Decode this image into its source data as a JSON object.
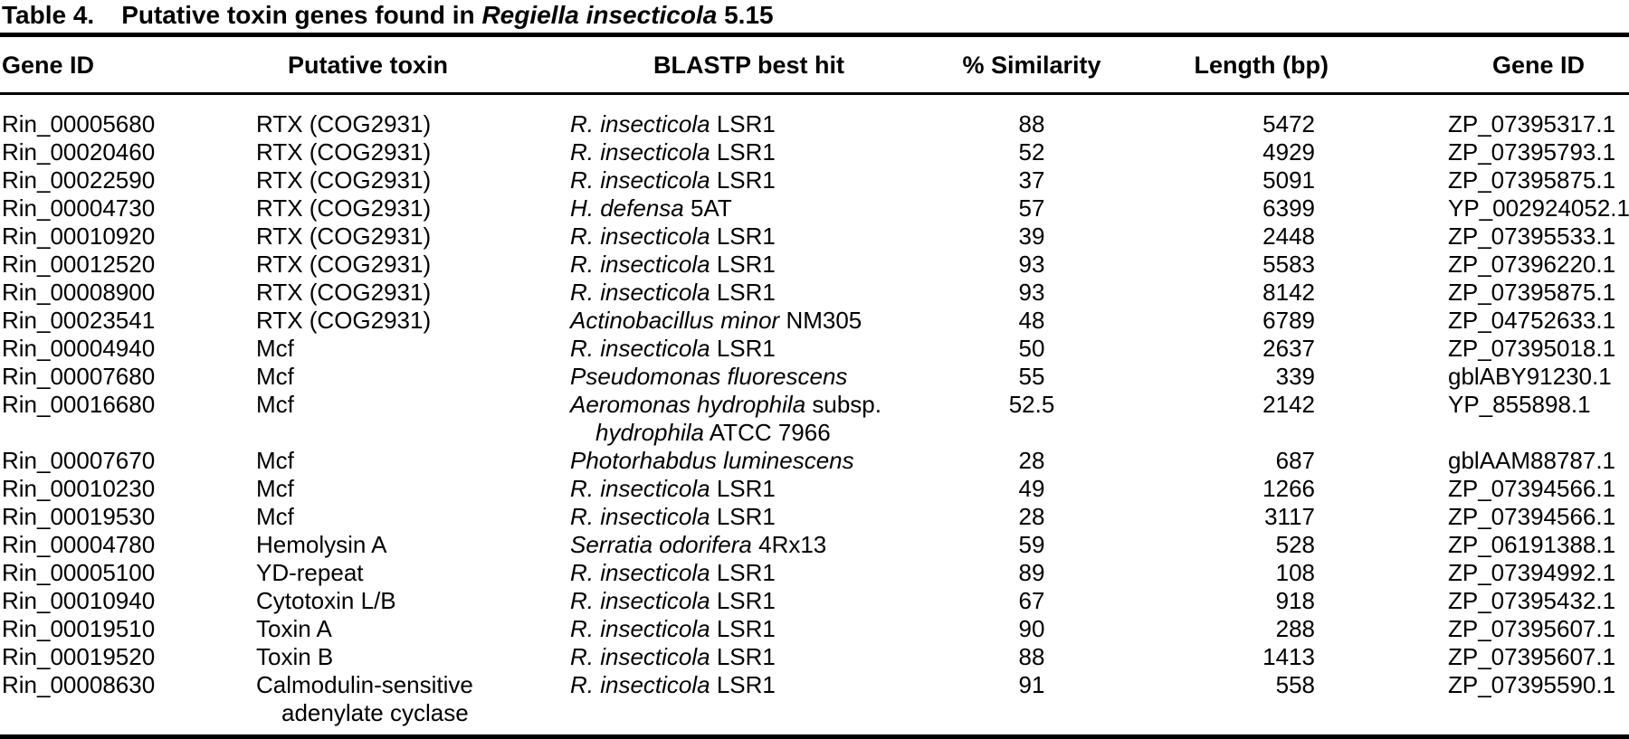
{
  "caption": {
    "label": "Table 4.",
    "text": "Putative toxin genes found in ",
    "species": "Regiella insecticola",
    "suffix": " 5.15"
  },
  "table": {
    "columns": [
      "Gene ID",
      "Putative toxin",
      "BLASTP best hit",
      "% Similarity",
      "Length (bp)",
      "Gene ID"
    ],
    "rows": [
      {
        "gene_id": "Rin_00005680",
        "toxin": [
          "RTX (COG2931)"
        ],
        "blast": [
          [
            {
              "t": "R. insecticola",
              "i": true
            },
            {
              "t": " LSR1"
            }
          ]
        ],
        "similarity": "88",
        "length": "5472",
        "accession": "ZP_07395317.1"
      },
      {
        "gene_id": "Rin_00020460",
        "toxin": [
          "RTX (COG2931)"
        ],
        "blast": [
          [
            {
              "t": "R. insecticola",
              "i": true
            },
            {
              "t": " LSR1"
            }
          ]
        ],
        "similarity": "52",
        "length": "4929",
        "accession": "ZP_07395793.1"
      },
      {
        "gene_id": "Rin_00022590",
        "toxin": [
          "RTX (COG2931)"
        ],
        "blast": [
          [
            {
              "t": "R. insecticola",
              "i": true
            },
            {
              "t": " LSR1"
            }
          ]
        ],
        "similarity": "37",
        "length": "5091",
        "accession": "ZP_07395875.1"
      },
      {
        "gene_id": "Rin_00004730",
        "toxin": [
          "RTX (COG2931)"
        ],
        "blast": [
          [
            {
              "t": "H. defensa",
              "i": true
            },
            {
              "t": " 5AT"
            }
          ]
        ],
        "similarity": "57",
        "length": "6399",
        "accession": "YP_002924052.1"
      },
      {
        "gene_id": "Rin_00010920",
        "toxin": [
          "RTX (COG2931)"
        ],
        "blast": [
          [
            {
              "t": "R. insecticola",
              "i": true
            },
            {
              "t": " LSR1"
            }
          ]
        ],
        "similarity": "39",
        "length": "2448",
        "accession": "ZP_07395533.1"
      },
      {
        "gene_id": "Rin_00012520",
        "toxin": [
          "RTX (COG2931)"
        ],
        "blast": [
          [
            {
              "t": "R. insecticola",
              "i": true
            },
            {
              "t": " LSR1"
            }
          ]
        ],
        "similarity": "93",
        "length": "5583",
        "accession": "ZP_07396220.1"
      },
      {
        "gene_id": "Rin_00008900",
        "toxin": [
          "RTX (COG2931)"
        ],
        "blast": [
          [
            {
              "t": "R. insecticola",
              "i": true
            },
            {
              "t": " LSR1"
            }
          ]
        ],
        "similarity": "93",
        "length": "8142",
        "accession": "ZP_07395875.1"
      },
      {
        "gene_id": "Rin_00023541",
        "toxin": [
          "RTX (COG2931)"
        ],
        "blast": [
          [
            {
              "t": "Actinobacillus minor",
              "i": true
            },
            {
              "t": " NM305"
            }
          ]
        ],
        "similarity": "48",
        "length": "6789",
        "accession": "ZP_04752633.1"
      },
      {
        "gene_id": "Rin_00004940",
        "toxin": [
          "Mcf"
        ],
        "blast": [
          [
            {
              "t": "R. insecticola",
              "i": true
            },
            {
              "t": " LSR1"
            }
          ]
        ],
        "similarity": "50",
        "length": "2637",
        "accession": "ZP_07395018.1"
      },
      {
        "gene_id": "Rin_00007680",
        "toxin": [
          "Mcf"
        ],
        "blast": [
          [
            {
              "t": "Pseudomonas fluorescens",
              "i": true
            }
          ]
        ],
        "similarity": "55",
        "length": "339",
        "accession": "gblABY91230.1"
      },
      {
        "gene_id": "Rin_00016680",
        "toxin": [
          "Mcf"
        ],
        "blast": [
          [
            {
              "t": "Aeromonas hydrophila",
              "i": true
            },
            {
              "t": " subsp."
            }
          ],
          [
            {
              "t": "hydrophila",
              "i": true
            },
            {
              "t": " ATCC 7966"
            }
          ]
        ],
        "similarity": "52.5",
        "length": "2142",
        "accession": "YP_855898.1"
      },
      {
        "gene_id": "Rin_00007670",
        "toxin": [
          "Mcf"
        ],
        "blast": [
          [
            {
              "t": "Photorhabdus luminescens",
              "i": true
            }
          ]
        ],
        "similarity": "28",
        "length": "687",
        "accession": "gblAAM88787.1"
      },
      {
        "gene_id": "Rin_00010230",
        "toxin": [
          "Mcf"
        ],
        "blast": [
          [
            {
              "t": "R. insecticola",
              "i": true
            },
            {
              "t": " LSR1"
            }
          ]
        ],
        "similarity": "49",
        "length": "1266",
        "accession": "ZP_07394566.1"
      },
      {
        "gene_id": "Rin_00019530",
        "toxin": [
          "Mcf"
        ],
        "blast": [
          [
            {
              "t": "R. insecticola",
              "i": true
            },
            {
              "t": " LSR1"
            }
          ]
        ],
        "similarity": "28",
        "length": "3117",
        "accession": "ZP_07394566.1"
      },
      {
        "gene_id": "Rin_00004780",
        "toxin": [
          "Hemolysin A"
        ],
        "blast": [
          [
            {
              "t": "Serratia odorifera",
              "i": true
            },
            {
              "t": " 4Rx13"
            }
          ]
        ],
        "similarity": "59",
        "length": "528",
        "accession": "ZP_06191388.1"
      },
      {
        "gene_id": "Rin_00005100",
        "toxin": [
          "YD-repeat"
        ],
        "blast": [
          [
            {
              "t": "R. insecticola",
              "i": true
            },
            {
              "t": " LSR1"
            }
          ]
        ],
        "similarity": "89",
        "length": "108",
        "accession": "ZP_07394992.1"
      },
      {
        "gene_id": "Rin_00010940",
        "toxin": [
          "Cytotoxin L/B"
        ],
        "blast": [
          [
            {
              "t": "R. insecticola",
              "i": true
            },
            {
              "t": " LSR1"
            }
          ]
        ],
        "similarity": "67",
        "length": "918",
        "accession": "ZP_07395432.1"
      },
      {
        "gene_id": "Rin_00019510",
        "toxin": [
          "Toxin A"
        ],
        "blast": [
          [
            {
              "t": "R. insecticola",
              "i": true
            },
            {
              "t": " LSR1"
            }
          ]
        ],
        "similarity": "90",
        "length": "288",
        "accession": "ZP_07395607.1"
      },
      {
        "gene_id": "Rin_00019520",
        "toxin": [
          "Toxin B"
        ],
        "blast": [
          [
            {
              "t": "R. insecticola",
              "i": true
            },
            {
              "t": " LSR1"
            }
          ]
        ],
        "similarity": "88",
        "length": "1413",
        "accession": "ZP_07395607.1"
      },
      {
        "gene_id": "Rin_00008630",
        "toxin": [
          "Calmodulin-sensitive",
          "adenylate cyclase"
        ],
        "blast": [
          [
            {
              "t": "R. insecticola",
              "i": true
            },
            {
              "t": " LSR1"
            }
          ]
        ],
        "similarity": "91",
        "length": "558",
        "accession": "ZP_07395590.1"
      }
    ]
  }
}
